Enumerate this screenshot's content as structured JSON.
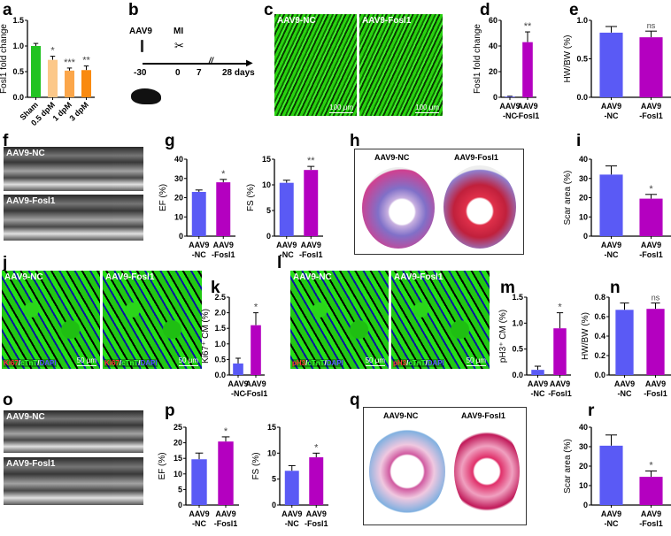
{
  "panels": {
    "a": "a",
    "b": "b",
    "c": "c",
    "d": "d",
    "e": "e",
    "f": "f",
    "g": "g",
    "h": "h",
    "i": "i",
    "j": "j",
    "k": "k",
    "l": "l",
    "m": "m",
    "n": "n",
    "o": "o",
    "p": "p",
    "q": "q",
    "r": "r"
  },
  "timeline": {
    "aav9": "AAV9",
    "mi": "MI",
    "ticks": [
      "-30",
      "0",
      "7",
      "28 days"
    ],
    "break": "//"
  },
  "images": {
    "c": {
      "left": "AAV9-NC",
      "right": "AAV9-Fosl1",
      "scale": "100 μm"
    },
    "f": {
      "top": "AAV9-NC",
      "bottom": "AAV9-Fosl1"
    },
    "h": {
      "left": "AAV9-NC",
      "right": "AAV9-Fosl1"
    },
    "j": {
      "left": "AAV9-NC",
      "right": "AAV9-Fosl1",
      "scale": "50 μm",
      "stain": [
        "Ki67",
        "/",
        "cTnT",
        "/",
        "DAPI"
      ]
    },
    "l": {
      "left": "AAV9-NC",
      "right": "AAV9-Fosl1",
      "scale": "50 μm",
      "stain": [
        "pH3",
        "/",
        "cTnT",
        "/",
        "DAPI"
      ]
    },
    "o": {
      "top": "AAV9-NC",
      "bottom": "AAV9-Fosl1"
    },
    "q": {
      "left": "AAV9-NC",
      "right": "AAV9-Fosl1"
    }
  },
  "colors": {
    "nc": "#5a5af5",
    "fosl1": "#b400c0",
    "sham": "#22c322",
    "d05": "#fcc88a",
    "d1": "#fba64a",
    "d3": "#f98a10"
  },
  "chart_data": [
    {
      "id": "a",
      "type": "bar",
      "ylabel": "Fosl1 fold change",
      "ylim": [
        0,
        1.5
      ],
      "yticks": [
        "0.0",
        "0.5",
        "1.0",
        "1.5"
      ],
      "categories": [
        [
          "Sham"
        ],
        [
          "0.5 dpM"
        ],
        [
          "1 dpM"
        ],
        [
          "3 dpM"
        ]
      ],
      "values": [
        1.0,
        0.73,
        0.52,
        0.53
      ],
      "errors": [
        0.05,
        0.07,
        0.05,
        0.08
      ],
      "sig": [
        "",
        "*",
        "***",
        "**"
      ],
      "colors": [
        "#22c322",
        "#fcc88a",
        "#fba64a",
        "#f98a10"
      ],
      "rotate": true
    },
    {
      "id": "d",
      "type": "bar",
      "ylabel": "Fosl1 fold change",
      "ylim": [
        0,
        60
      ],
      "yticks": [
        "0",
        "20",
        "40",
        "60"
      ],
      "categories": [
        [
          "AAV9",
          "-NC"
        ],
        [
          "AAV9",
          "-Fosl1"
        ]
      ],
      "values": [
        0.5,
        43
      ],
      "errors": [
        0.3,
        8
      ],
      "sig": [
        "",
        "**"
      ],
      "colors": [
        "#5a5af5",
        "#b400c0"
      ]
    },
    {
      "id": "e",
      "type": "bar",
      "ylabel": "HW/BW (%)",
      "ylim": [
        0,
        1.0
      ],
      "yticks": [
        "0.0",
        "0.5",
        "1.0"
      ],
      "categories": [
        [
          "AAV9",
          "-NC"
        ],
        [
          "AAV9",
          "-Fosl1"
        ]
      ],
      "values": [
        0.84,
        0.78
      ],
      "errors": [
        0.08,
        0.08
      ],
      "sig": [
        "",
        "ns"
      ],
      "colors": [
        "#5a5af5",
        "#b400c0"
      ]
    },
    {
      "id": "g-ef",
      "type": "bar",
      "ylabel": "EF (%)",
      "ylim": [
        0,
        40
      ],
      "yticks": [
        "0",
        "10",
        "20",
        "30",
        "40"
      ],
      "categories": [
        [
          "AAV9",
          "-NC"
        ],
        [
          "AAV9",
          "-Fosl1"
        ]
      ],
      "values": [
        23,
        28
      ],
      "errors": [
        1,
        1.5
      ],
      "sig": [
        "",
        "*"
      ],
      "colors": [
        "#5a5af5",
        "#b400c0"
      ]
    },
    {
      "id": "g-fs",
      "type": "bar",
      "ylabel": "FS (%)",
      "ylim": [
        0,
        15
      ],
      "yticks": [
        "0",
        "5",
        "10",
        "15"
      ],
      "categories": [
        [
          "AAV9",
          "-NC"
        ],
        [
          "AAV9",
          "-Fosl1"
        ]
      ],
      "values": [
        10.4,
        12.9
      ],
      "errors": [
        0.5,
        0.7
      ],
      "sig": [
        "",
        "**"
      ],
      "colors": [
        "#5a5af5",
        "#b400c0"
      ]
    },
    {
      "id": "i",
      "type": "bar",
      "ylabel": "Scar area (%)",
      "ylim": [
        0,
        40
      ],
      "yticks": [
        "0",
        "10",
        "20",
        "30",
        "40"
      ],
      "categories": [
        [
          "AAV9",
          "-NC"
        ],
        [
          "AAV9",
          "-Fosl1"
        ]
      ],
      "values": [
        32,
        19.5
      ],
      "errors": [
        4.5,
        2.2
      ],
      "sig": [
        "",
        "*"
      ],
      "colors": [
        "#5a5af5",
        "#b400c0"
      ]
    },
    {
      "id": "k",
      "type": "bar",
      "ylabel": "Ki67⁺ CM (%)",
      "ylim": [
        0,
        2.5
      ],
      "yticks": [
        "0.0",
        "0.5",
        "1.0",
        "1.5",
        "2.0",
        "2.5"
      ],
      "categories": [
        [
          "AAV9",
          "-NC"
        ],
        [
          "AAV9",
          "-Fosl1"
        ]
      ],
      "values": [
        0.37,
        1.6
      ],
      "errors": [
        0.17,
        0.4
      ],
      "sig": [
        "",
        "*"
      ],
      "colors": [
        "#5a5af5",
        "#b400c0"
      ]
    },
    {
      "id": "m",
      "type": "bar",
      "ylabel": "pH3⁺ CM (%)",
      "ylim": [
        0,
        1.5
      ],
      "yticks": [
        "0.0",
        "0.5",
        "1.0",
        "1.5"
      ],
      "categories": [
        [
          "AAV9",
          "-NC"
        ],
        [
          "AAV9",
          "-Fosl1"
        ]
      ],
      "values": [
        0.1,
        0.9
      ],
      "errors": [
        0.07,
        0.3
      ],
      "sig": [
        "",
        "*"
      ],
      "colors": [
        "#5a5af5",
        "#b400c0"
      ]
    },
    {
      "id": "n",
      "type": "bar",
      "ylabel": "HW/BW (%)",
      "ylim": [
        0,
        0.8
      ],
      "yticks": [
        "0.0",
        "0.2",
        "0.4",
        "0.6",
        "0.8"
      ],
      "categories": [
        [
          "AAV9",
          "-NC"
        ],
        [
          "AAV9",
          "-Fosl1"
        ]
      ],
      "values": [
        0.67,
        0.68
      ],
      "errors": [
        0.07,
        0.06
      ],
      "sig": [
        "",
        "ns"
      ],
      "colors": [
        "#5a5af5",
        "#b400c0"
      ]
    },
    {
      "id": "p-ef",
      "type": "bar",
      "ylabel": "EF (%)",
      "ylim": [
        0,
        25
      ],
      "yticks": [
        "0",
        "5",
        "10",
        "15",
        "20",
        "25"
      ],
      "categories": [
        [
          "AAV9",
          "-NC"
        ],
        [
          "AAV9",
          "-Fosl1"
        ]
      ],
      "values": [
        14.7,
        20.4
      ],
      "errors": [
        2,
        1.5
      ],
      "sig": [
        "",
        "*"
      ],
      "colors": [
        "#5a5af5",
        "#b400c0"
      ]
    },
    {
      "id": "p-fs",
      "type": "bar",
      "ylabel": "FS (%)",
      "ylim": [
        0,
        15
      ],
      "yticks": [
        "0",
        "5",
        "10",
        "15"
      ],
      "categories": [
        [
          "AAV9",
          "-NC"
        ],
        [
          "AAV9",
          "-Fosl1"
        ]
      ],
      "values": [
        6.6,
        9.2
      ],
      "errors": [
        1,
        0.8
      ],
      "sig": [
        "",
        "*"
      ],
      "colors": [
        "#5a5af5",
        "#b400c0"
      ]
    },
    {
      "id": "r",
      "type": "bar",
      "ylabel": "Scar area (%)",
      "ylim": [
        0,
        40
      ],
      "yticks": [
        "0",
        "10",
        "20",
        "30",
        "40"
      ],
      "categories": [
        [
          "AAV9",
          "-NC"
        ],
        [
          "AAV9",
          "-Fosl1"
        ]
      ],
      "values": [
        30.5,
        14.5
      ],
      "errors": [
        5.5,
        3
      ],
      "sig": [
        "",
        "*"
      ],
      "colors": [
        "#5a5af5",
        "#b400c0"
      ]
    }
  ]
}
